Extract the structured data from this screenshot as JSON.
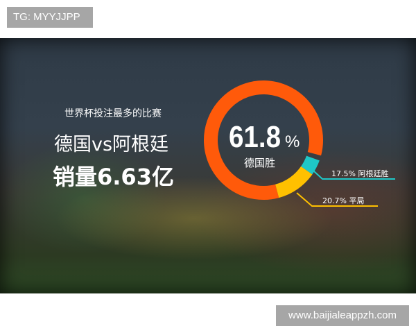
{
  "watermark_top": "TG: MYYJJPP",
  "watermark_bottom": "www.baijialeappzh.com",
  "headline": {
    "subtitle": "世界杯投注最多的比赛",
    "match": "德国vs阿根廷",
    "sales": "销量6.63亿"
  },
  "chart_data": {
    "type": "pie",
    "donut": true,
    "center_value": "61.8",
    "center_unit": "%",
    "center_label": "德国胜",
    "slices": [
      {
        "label": "德国胜",
        "value": 61.8,
        "color": "#ff5a0a"
      },
      {
        "label": "阿根廷胜",
        "value": 17.5,
        "display": "17.5%  阿根廷胜",
        "color": "#1ec8c8"
      },
      {
        "label": "平局",
        "value": 20.7,
        "display": "20.7%  平局",
        "color": "#ffc000"
      }
    ]
  }
}
